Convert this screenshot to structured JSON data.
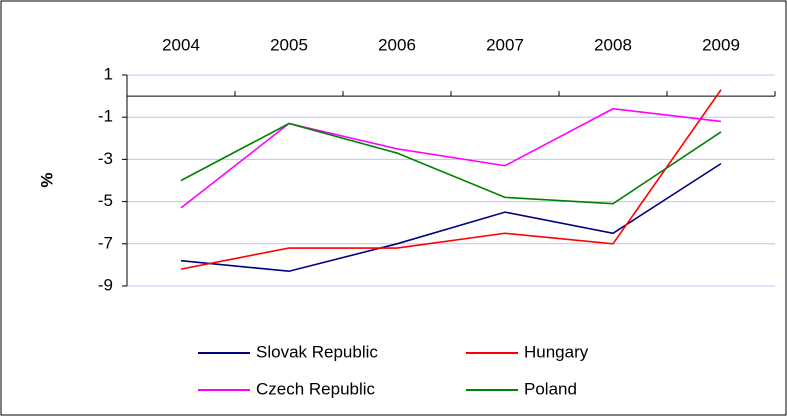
{
  "chart_data": {
    "type": "line",
    "y_label": "%",
    "categories": [
      "2004",
      "2005",
      "2006",
      "2007",
      "2008",
      "2009"
    ],
    "series": [
      {
        "name": "Slovak Republic",
        "color": "#000080",
        "values": [
          -7.8,
          -8.3,
          -7.0,
          -5.5,
          -6.5,
          -3.2
        ]
      },
      {
        "name": "Hungary",
        "color": "#ff0000",
        "values": [
          -8.2,
          -7.2,
          -7.2,
          -6.5,
          -7.0,
          0.3
        ]
      },
      {
        "name": "Czech Republic",
        "color": "#ff00ff",
        "values": [
          -5.3,
          -1.3,
          -2.5,
          -3.3,
          -0.6,
          -1.2
        ]
      },
      {
        "name": "Poland",
        "color": "#008000",
        "values": [
          -4.0,
          -1.3,
          -2.7,
          -4.8,
          -5.1,
          -1.7
        ]
      }
    ],
    "ylim": [
      -9,
      1
    ],
    "yticks": [
      1,
      -1,
      -3,
      -5,
      -7,
      -9
    ],
    "grid": true
  }
}
